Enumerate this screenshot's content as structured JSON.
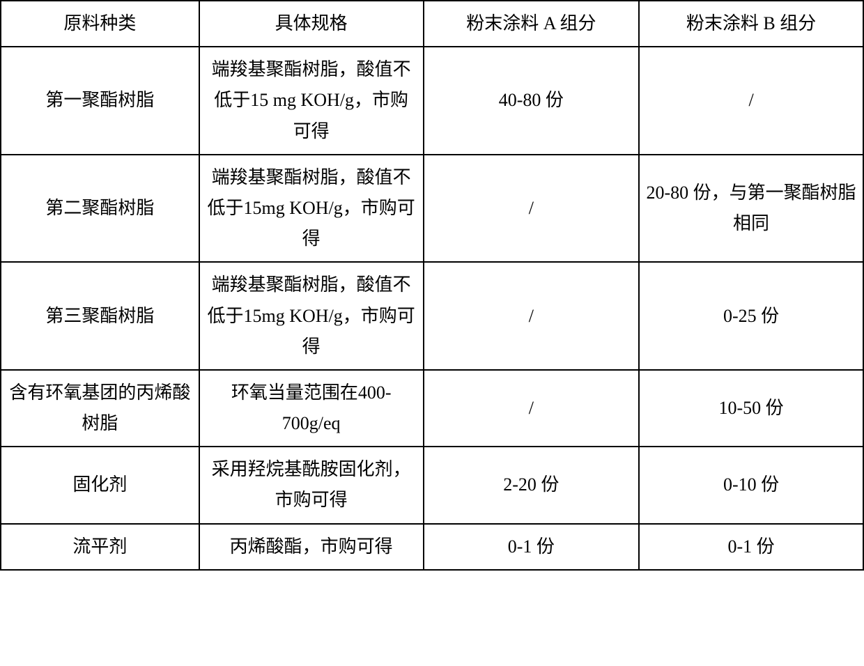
{
  "table": {
    "headers": {
      "col1": "原料种类",
      "col2": "具体规格",
      "col3": "粉末涂料 A 组分",
      "col4": "粉末涂料 B 组分"
    },
    "rows": [
      {
        "col1": "第一聚酯树脂",
        "col2": "端羧基聚酯树脂，酸值不低于15 mg KOH/g，市购可得",
        "col3": "40-80 份",
        "col4": "/"
      },
      {
        "col1": "第二聚酯树脂",
        "col2": "端羧基聚酯树脂，酸值不低于15mg KOH/g，市购可得",
        "col3": "/",
        "col4": "20-80 份，与第一聚酯树脂相同"
      },
      {
        "col1": "第三聚酯树脂",
        "col2": "端羧基聚酯树脂，酸值不低于15mg KOH/g，市购可得",
        "col3": "/",
        "col4": "0-25 份"
      },
      {
        "col1": "含有环氧基团的丙烯酸树脂",
        "col2": "环氧当量范围在400-700g/eq",
        "col3": "/",
        "col4": "10-50 份"
      },
      {
        "col1": "固化剂",
        "col2": "采用羟烷基酰胺固化剂，市购可得",
        "col3": "2-20 份",
        "col4": "0-10 份"
      },
      {
        "col1": "流平剂",
        "col2": "丙烯酸酯，市购可得",
        "col3": "0-1 份",
        "col4": "0-1 份"
      }
    ]
  }
}
